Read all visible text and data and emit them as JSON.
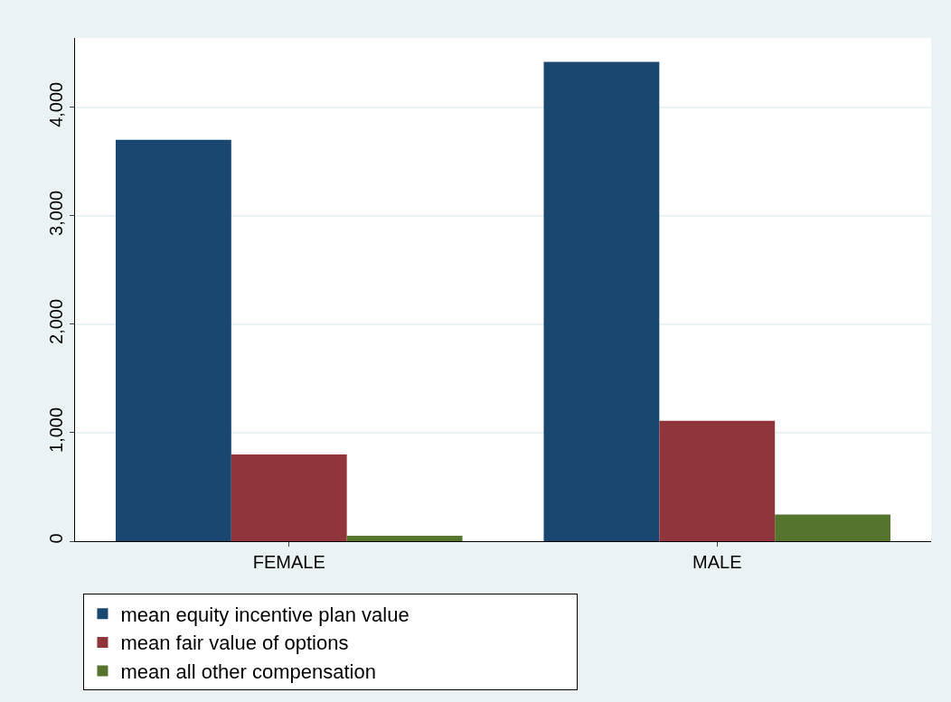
{
  "chart_data": {
    "type": "bar",
    "categories": [
      "FEMALE",
      "MALE"
    ],
    "series": [
      {
        "name": "mean equity incentive plan value",
        "color": "#1a476f",
        "values": [
          3700,
          4420
        ]
      },
      {
        "name": "mean fair value of options",
        "color": "#90353b",
        "values": [
          800,
          1110
        ]
      },
      {
        "name": "mean all other compensation",
        "color": "#55752f",
        "values": [
          50,
          245
        ]
      }
    ],
    "ylim": [
      0,
      4640
    ],
    "yticks": [
      {
        "value": 0,
        "label": "0"
      },
      {
        "value": 1000,
        "label": "1,000"
      },
      {
        "value": 2000,
        "label": "2,000"
      },
      {
        "value": 3000,
        "label": "3,000"
      },
      {
        "value": 4000,
        "label": "4,000"
      }
    ],
    "grid": "y",
    "legend": "bottom"
  }
}
